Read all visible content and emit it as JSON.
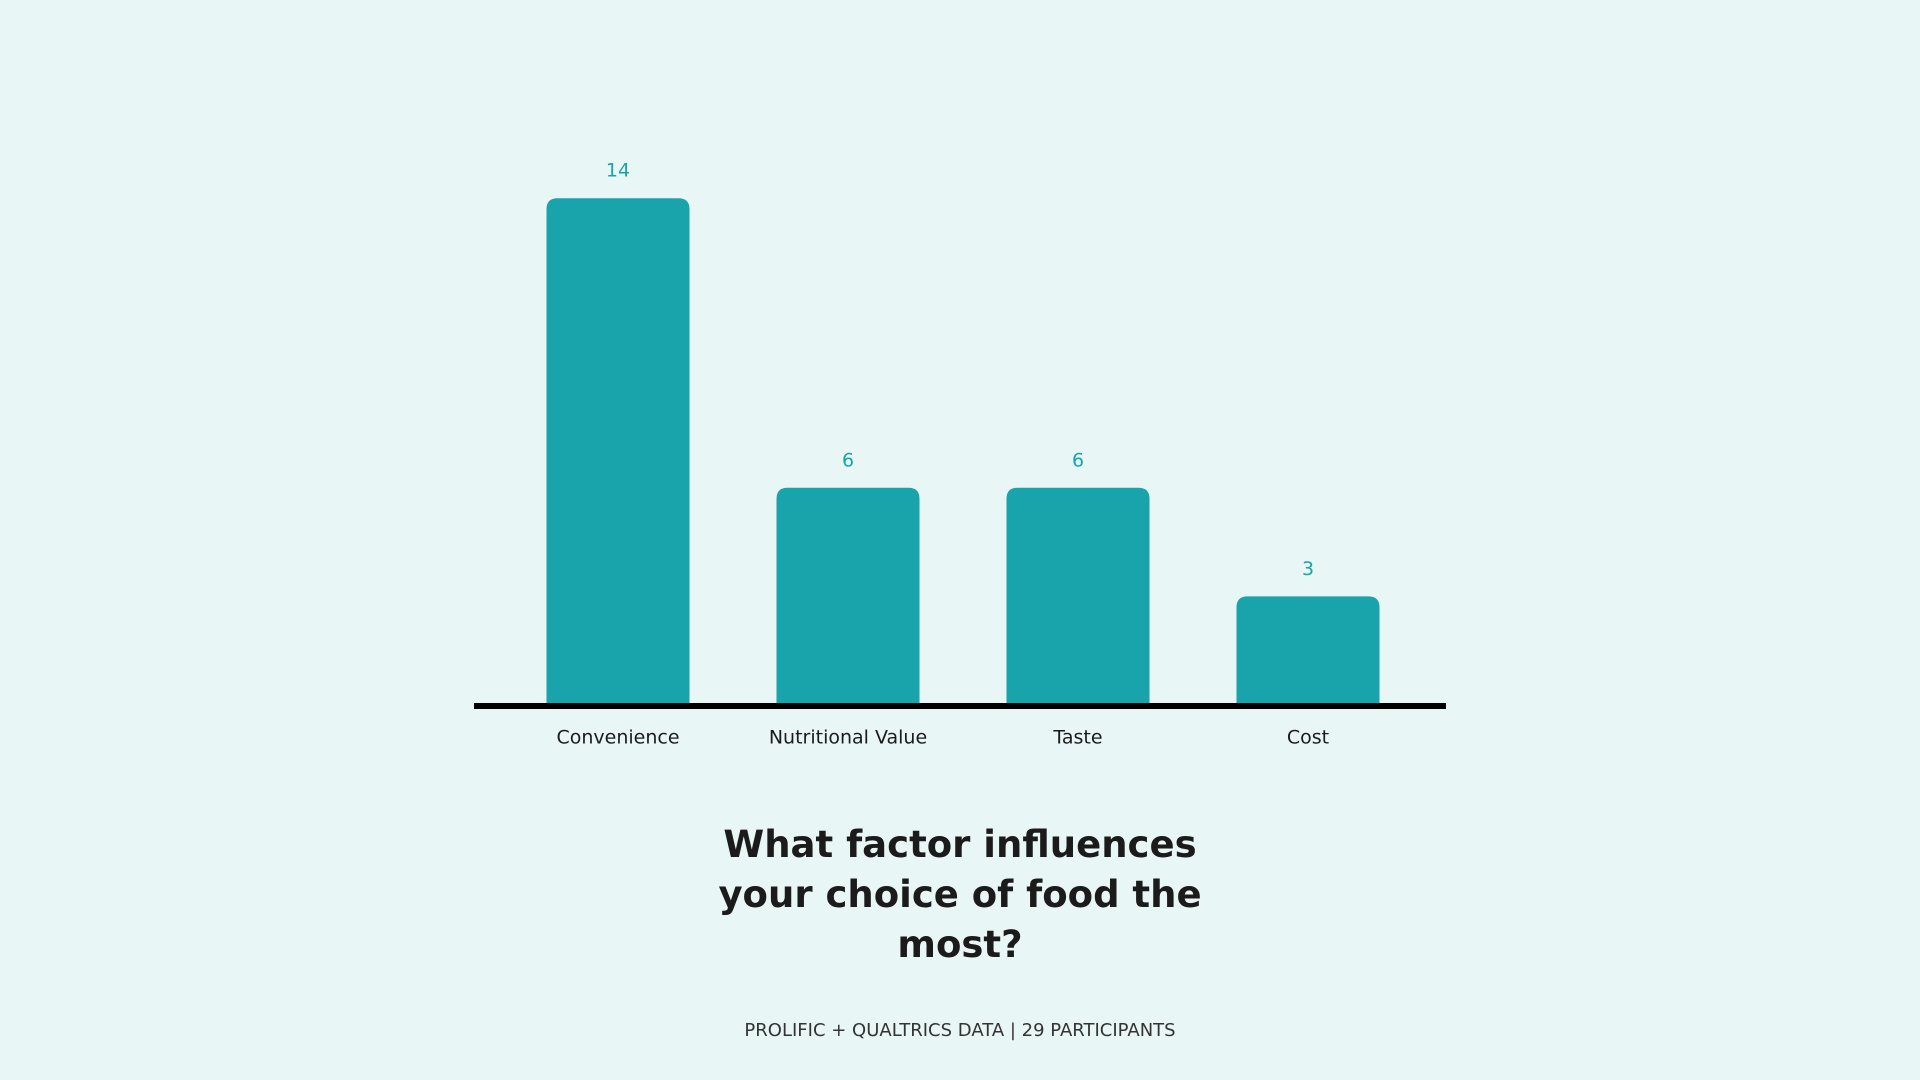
{
  "chart_data": {
    "type": "bar",
    "title": "What factor influences your choice of food the most?",
    "categories": [
      "Convenience",
      "Nutritional Value",
      "Taste",
      "Cost"
    ],
    "values": [
      14,
      6,
      6,
      3
    ],
    "color": "#19a3ab",
    "source": "PROLIFIC + QUALTRICS DATA | 29 PARTICIPANTS"
  }
}
